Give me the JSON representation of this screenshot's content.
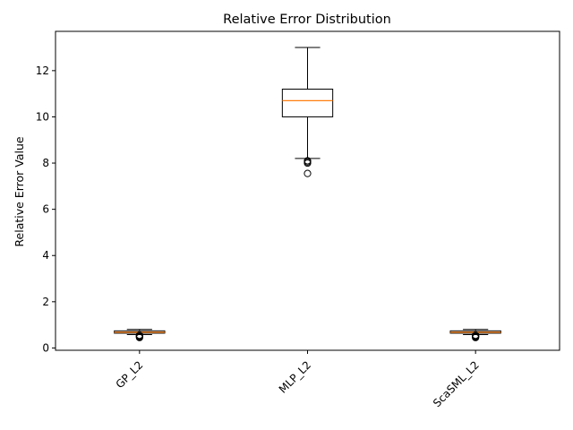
{
  "chart_data": {
    "type": "box",
    "title": "Relative Error Distribution",
    "xlabel": "",
    "ylabel": "Relative Error Value",
    "ylim": [
      -0.1,
      13.7
    ],
    "yticks": [
      0,
      2,
      4,
      6,
      8,
      10,
      12
    ],
    "categories": [
      "GP_L2",
      "MLP_L2",
      "ScaSML_L2"
    ],
    "boxes": [
      {
        "category": "GP_L2",
        "whisker_low": 0.58,
        "q1": 0.64,
        "median": 0.68,
        "q3": 0.74,
        "whisker_high": 0.8,
        "outliers": [
          0.45,
          0.48,
          0.5,
          0.52,
          0.55
        ]
      },
      {
        "category": "MLP_L2",
        "whisker_low": 8.2,
        "q1": 10.0,
        "median": 10.7,
        "q3": 11.2,
        "whisker_high": 13.0,
        "outliers": [
          7.55,
          8.0,
          8.05,
          8.1
        ]
      },
      {
        "category": "ScaSML_L2",
        "whisker_low": 0.58,
        "q1": 0.64,
        "median": 0.68,
        "q3": 0.74,
        "whisker_high": 0.8,
        "outliers": [
          0.45,
          0.48,
          0.5,
          0.52,
          0.55
        ]
      }
    ],
    "colors": {
      "box": "#000000",
      "median": "#ff7f0e",
      "outlier": "#000000"
    },
    "grid": false,
    "tick_label_rotation": 45
  }
}
